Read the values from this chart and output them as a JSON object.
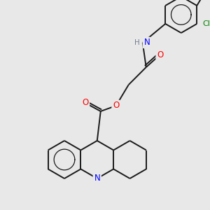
{
  "background_color": "#e8e8e8",
  "bond_color": "#1a1a1a",
  "atom_colors": {
    "N": "#0000ff",
    "O": "#ff0000",
    "Cl": "#008000",
    "C": "#1a1a1a"
  },
  "figsize": [
    3.0,
    3.0
  ],
  "dpi": 100,
  "lw": 1.4,
  "fs": 7.0
}
